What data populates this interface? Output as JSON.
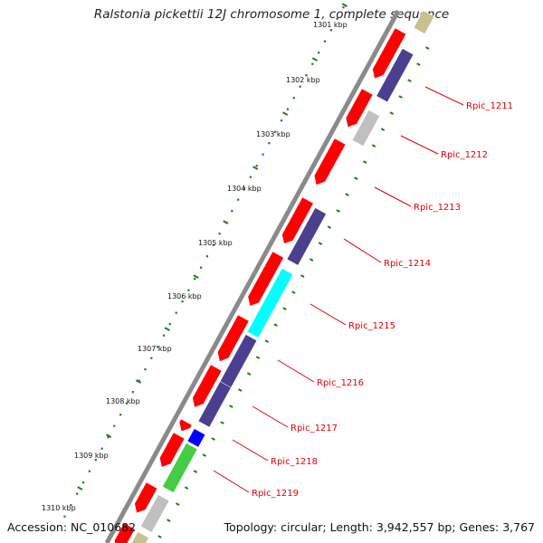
{
  "title": "Ralstonia pickettii 12J chromosome 1, complete sequence",
  "footer": {
    "accession": "Accession: NC_010682",
    "summary": "Topology: circular; Length: 3,942,557 bp; Genes: 3,767"
  },
  "scale_labels": [
    "1301 kbp",
    "1302 kbp",
    "1303 kbp",
    "1304 kbp",
    "1305 kbp",
    "1306 kbp",
    "1307 kbp",
    "1308 kbp",
    "1309 kbp",
    "1310 kbp"
  ],
  "gene_labels": [
    "Rpic_1211",
    "Rpic_1212",
    "Rpic_1213",
    "Rpic_1214",
    "Rpic_1215",
    "Rpic_1216",
    "Rpic_1217",
    "Rpic_1218",
    "Rpic_1219"
  ],
  "colors": {
    "forward_strand": "#ff0000",
    "reverse_dark": "#4b3f8f",
    "reverse_gray": "#c0c0c0",
    "cyan": "#00ffff",
    "blue": "#0000ff",
    "green": "#44cc44",
    "khaki": "#c9c090",
    "backbone": "#8a8a8a",
    "tick": "#1a7f1a",
    "label": "#e00000"
  }
}
